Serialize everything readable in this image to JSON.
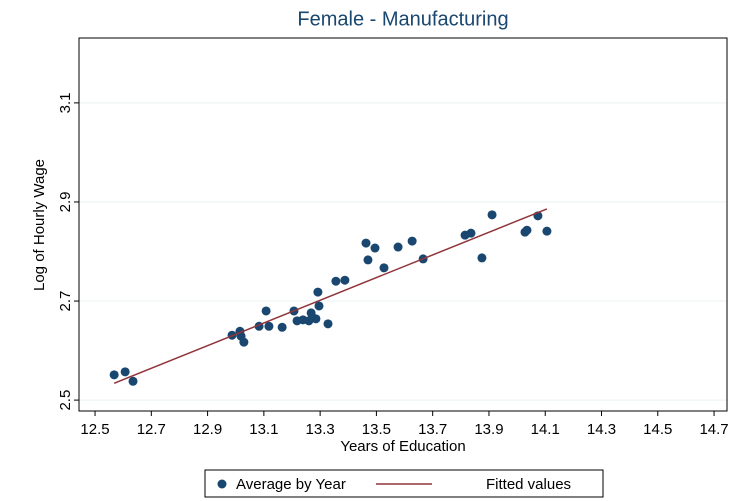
{
  "chart_data": {
    "type": "scatter",
    "title": "Female - Manufacturing",
    "xlabel": "Years of Education",
    "ylabel": "Log of Hourly Wage",
    "xlim": [
      12.443,
      14.746
    ],
    "ylim": [
      2.478,
      3.231
    ],
    "xticks": [
      12.5,
      12.7,
      12.9,
      13.1,
      13.3,
      13.5,
      13.7,
      13.9,
      14.1,
      14.3,
      14.5,
      14.7
    ],
    "yticks": [
      2.5,
      2.7,
      2.9,
      3.1
    ],
    "grid": true,
    "legend": "bottom",
    "series": [
      {
        "name": "Average by Year",
        "color": "#1a476f",
        "type": "scatter",
        "x": [
          12.568,
          12.607,
          12.635,
          12.987,
          13.015,
          13.019,
          13.029,
          13.083,
          13.108,
          13.118,
          13.165,
          13.207,
          13.218,
          13.239,
          13.26,
          13.268,
          13.275,
          13.285,
          13.292,
          13.296,
          13.328,
          13.356,
          13.388,
          13.463,
          13.47,
          13.495,
          13.527,
          13.577,
          13.627,
          13.666,
          13.815,
          13.836,
          13.875,
          13.911,
          14.028,
          14.035,
          14.074,
          14.106
        ],
        "values": [
          2.551,
          2.557,
          2.538,
          2.631,
          2.639,
          2.629,
          2.617,
          2.649,
          2.68,
          2.649,
          2.647,
          2.68,
          2.66,
          2.662,
          2.66,
          2.676,
          2.666,
          2.664,
          2.718,
          2.69,
          2.654,
          2.74,
          2.742,
          2.817,
          2.783,
          2.807,
          2.767,
          2.809,
          2.821,
          2.785,
          2.833,
          2.837,
          2.787,
          2.874,
          2.839,
          2.843,
          2.872,
          2.841
        ]
      },
      {
        "name": "Fitted values",
        "color": "#90353b",
        "type": "line",
        "x": [
          12.568,
          14.106
        ],
        "values": [
          2.534,
          2.886
        ]
      }
    ]
  }
}
